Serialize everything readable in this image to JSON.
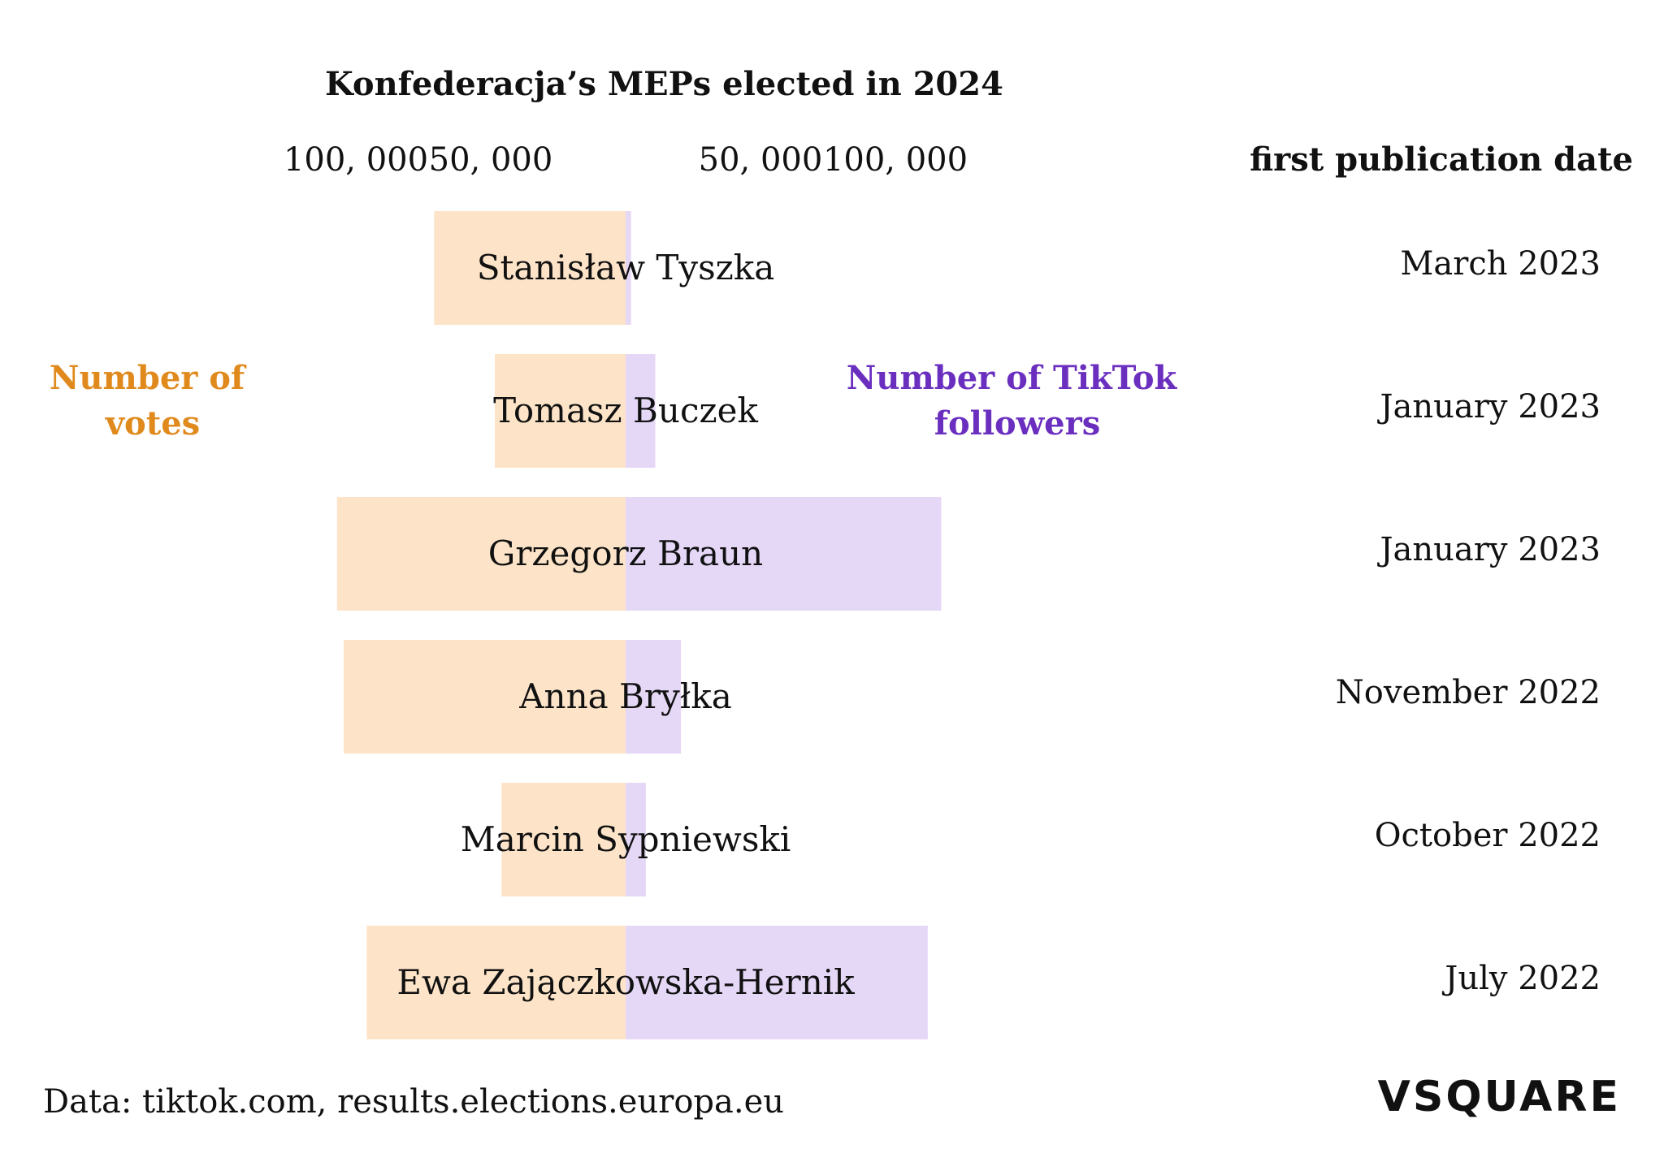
{
  "chart_data": {
    "type": "bar",
    "title": "Konfederacja’s MEPs elected in 2024",
    "left_series": {
      "name": "Number of votes",
      "label_lines": [
        "Number of",
        "votes"
      ],
      "color": "#FDE4C8",
      "label_color": "#E08A1E"
    },
    "right_series": {
      "name": "Number of TikTok followers",
      "label_lines": [
        "Number of TikTok",
        "followers"
      ],
      "color": "#E5D7F6",
      "label_color": "#6B2FBF"
    },
    "left_ticks": [
      {
        "value": 100000,
        "label": "100, 000"
      },
      {
        "value": 50000,
        "label": "50, 000"
      }
    ],
    "right_ticks": [
      {
        "value": 50000,
        "label": "50, 000"
      },
      {
        "value": 100000,
        "label": "100, 000"
      }
    ],
    "date_header": "first publication date",
    "rows": [
      {
        "name": "Stanisław Tyszka",
        "votes": 71000,
        "followers": 2000,
        "date": "March 2023"
      },
      {
        "name": "Tomasz Buczek",
        "votes": 48500,
        "followers": 11000,
        "date": "January 2023"
      },
      {
        "name": "Grzegorz Braun",
        "votes": 107000,
        "followers": 117000,
        "date": "January 2023"
      },
      {
        "name": "Anna Bryłka",
        "votes": 104500,
        "followers": 20500,
        "date": "November 2022"
      },
      {
        "name": "Marcin Sypniewski",
        "votes": 46000,
        "followers": 7500,
        "date": "October 2022"
      },
      {
        "name": "Ewa Zajączkowska-Hernik",
        "votes": 96000,
        "followers": 112000,
        "date": "July 2022"
      }
    ],
    "source": "Data: tiktok.com, results.elections.europa.eu",
    "logo": "VSQUARE"
  }
}
